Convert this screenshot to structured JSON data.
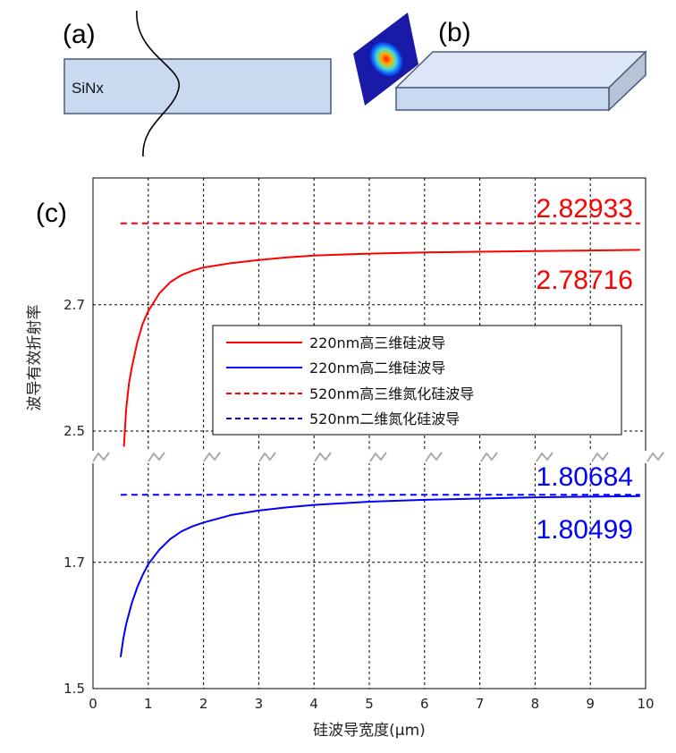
{
  "panels": {
    "a_label": "(a)",
    "b_label": "(b)",
    "c_label": "(c)",
    "slab_label": "SiNx"
  },
  "colors": {
    "red": "#ff0000",
    "blue": "#0000ff",
    "slab_fill": "#c9daf0"
  },
  "chart_data": {
    "type": "line",
    "xlabel": "硅波导宽度(μm)",
    "ylabel": "波导有效折射率",
    "xlim": [
      0,
      10
    ],
    "x_ticks": [
      "0",
      "1",
      "2",
      "3",
      "4",
      "5",
      "6",
      "7",
      "8",
      "9",
      "10"
    ],
    "y_ticks_upper": [
      "2.5",
      "2.7"
    ],
    "y_ticks_lower": [
      "1.5",
      "1.7"
    ],
    "axis_break": "between 1.81 and 2.47",
    "ylim_upper": [
      2.47,
      2.87
    ],
    "ylim_lower": [
      1.5,
      1.87
    ],
    "grid": true,
    "legend_position": "center-right",
    "series": [
      {
        "name": "220nm高三维硅波导",
        "style": "solid",
        "color": "#ff0000",
        "x": [
          0.56,
          0.6,
          0.65,
          0.7,
          0.8,
          0.9,
          1.0,
          1.2,
          1.4,
          1.6,
          1.8,
          2.0,
          2.5,
          3.0,
          3.5,
          4.0,
          5.0,
          6.0,
          7.0,
          8.0,
          9.0,
          9.9
        ],
        "y": [
          2.475,
          2.535,
          2.575,
          2.6,
          2.64,
          2.67,
          2.69,
          2.718,
          2.736,
          2.747,
          2.754,
          2.759,
          2.766,
          2.771,
          2.775,
          2.778,
          2.781,
          2.783,
          2.784,
          2.785,
          2.786,
          2.787
        ]
      },
      {
        "name": "220nm高二维硅波导",
        "style": "solid",
        "color": "#0000ff",
        "x": [
          0.5,
          0.55,
          0.6,
          0.7,
          0.8,
          0.9,
          1.0,
          1.2,
          1.4,
          1.6,
          1.8,
          2.0,
          2.5,
          3.0,
          3.5,
          4.0,
          5.0,
          6.0,
          7.0,
          8.0,
          9.0,
          9.9
        ],
        "y": [
          1.55,
          1.58,
          1.602,
          1.635,
          1.66,
          1.68,
          1.697,
          1.72,
          1.737,
          1.749,
          1.757,
          1.763,
          1.775,
          1.782,
          1.787,
          1.791,
          1.796,
          1.799,
          1.801,
          1.803,
          1.804,
          1.805
        ]
      },
      {
        "name": "520nm高三维氮化硅波导",
        "style": "dashed",
        "color": "#ff0000",
        "x": [
          0.5,
          9.9
        ],
        "y": [
          2.829,
          2.829
        ]
      },
      {
        "name": "520nm二维氮化硅波导",
        "style": "dashed",
        "color": "#0000ff",
        "x": [
          0.5,
          9.9
        ],
        "y": [
          1.807,
          1.807
        ]
      }
    ],
    "annotations": [
      {
        "text": "2.82933",
        "color": "#ff0000"
      },
      {
        "text": "2.78716",
        "color": "#ff0000"
      },
      {
        "text": "1.80684",
        "color": "#0000ff"
      },
      {
        "text": "1.80499",
        "color": "#0000ff"
      }
    ]
  }
}
